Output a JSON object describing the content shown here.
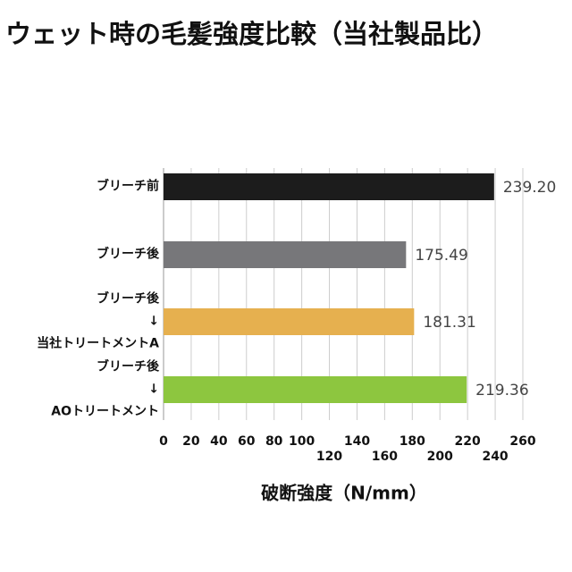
{
  "chart_data": {
    "type": "bar",
    "orientation": "horizontal",
    "title": "ウェット時の毛髪強度比較（当社製品比）",
    "x_label": "破断強度（N/mm）",
    "categories": [
      "ブリーチ前",
      "ブリーチ後",
      "ブリーチ後\n↓\n当社トリートメントA",
      "ブリーチ後\n↓\nAOトリートメント"
    ],
    "values": [
      239.2,
      175.49,
      181.31,
      219.36
    ],
    "value_labels": [
      "239.20",
      "175.49",
      "181.31",
      "219.36"
    ],
    "colors": [
      "#1c1c1c",
      "#77777a",
      "#e6b04f",
      "#8dc63f"
    ],
    "xlim": [
      0,
      260
    ],
    "xticks": [
      0,
      20,
      40,
      60,
      80,
      100,
      120,
      140,
      160,
      180,
      200,
      220,
      240,
      260
    ],
    "grid": true
  }
}
